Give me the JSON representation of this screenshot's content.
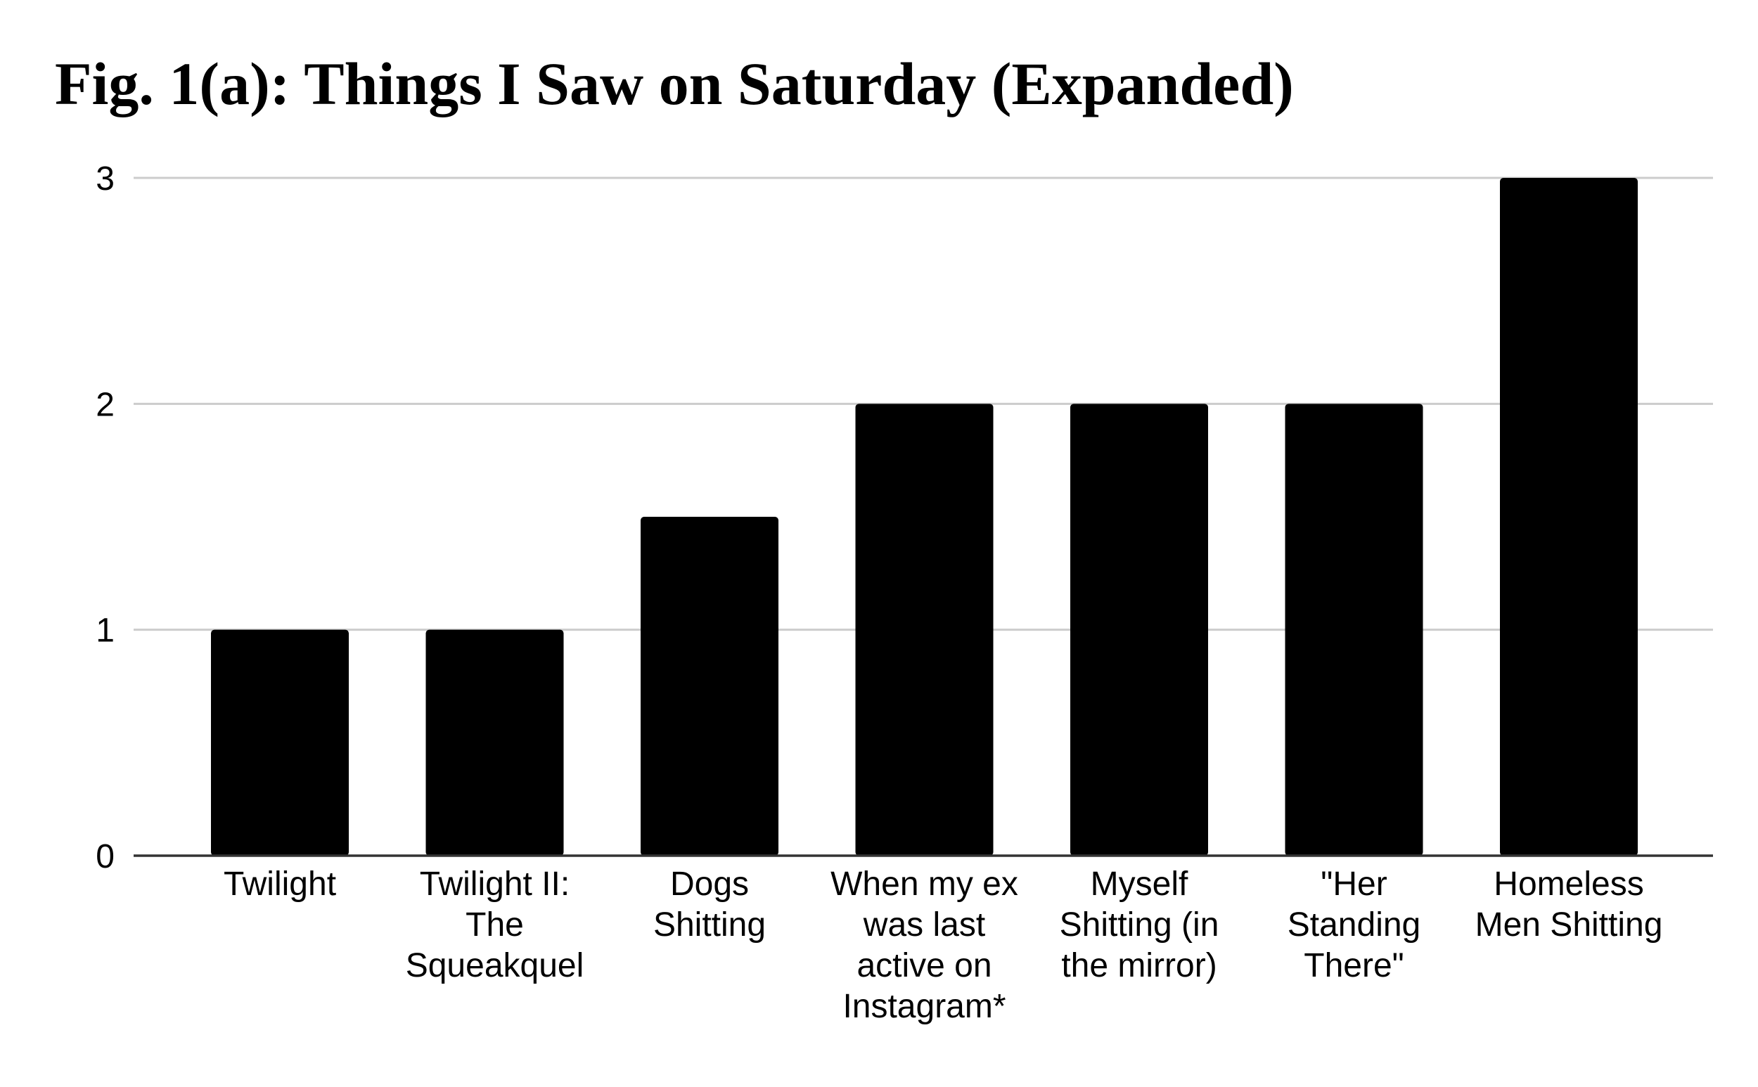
{
  "chart_data": {
    "type": "bar",
    "title": "Fig. 1(a): Things I Saw on Saturday (Expanded)",
    "xlabel": "",
    "ylabel": "",
    "categories": [
      [
        "Twilight"
      ],
      [
        "Twilight II:",
        "The",
        "Squeakquel"
      ],
      [
        "Dogs",
        "Shitting"
      ],
      [
        "When my ex",
        "was last",
        "active on",
        "Instagram*"
      ],
      [
        "Myself",
        "Shitting (in",
        "the mirror)"
      ],
      [
        "\"Her",
        "Standing",
        "There\""
      ],
      [
        "Homeless",
        "Men Shitting"
      ]
    ],
    "values": [
      1,
      1,
      1.5,
      2,
      2,
      2,
      3
    ],
    "ylim": [
      0,
      3
    ],
    "yticks": [
      "0",
      "1",
      "2",
      "3"
    ],
    "grid": true,
    "legend": "none",
    "bar_color": "#000000",
    "grid_color": "#cccccc",
    "axis_color": "#333333"
  }
}
